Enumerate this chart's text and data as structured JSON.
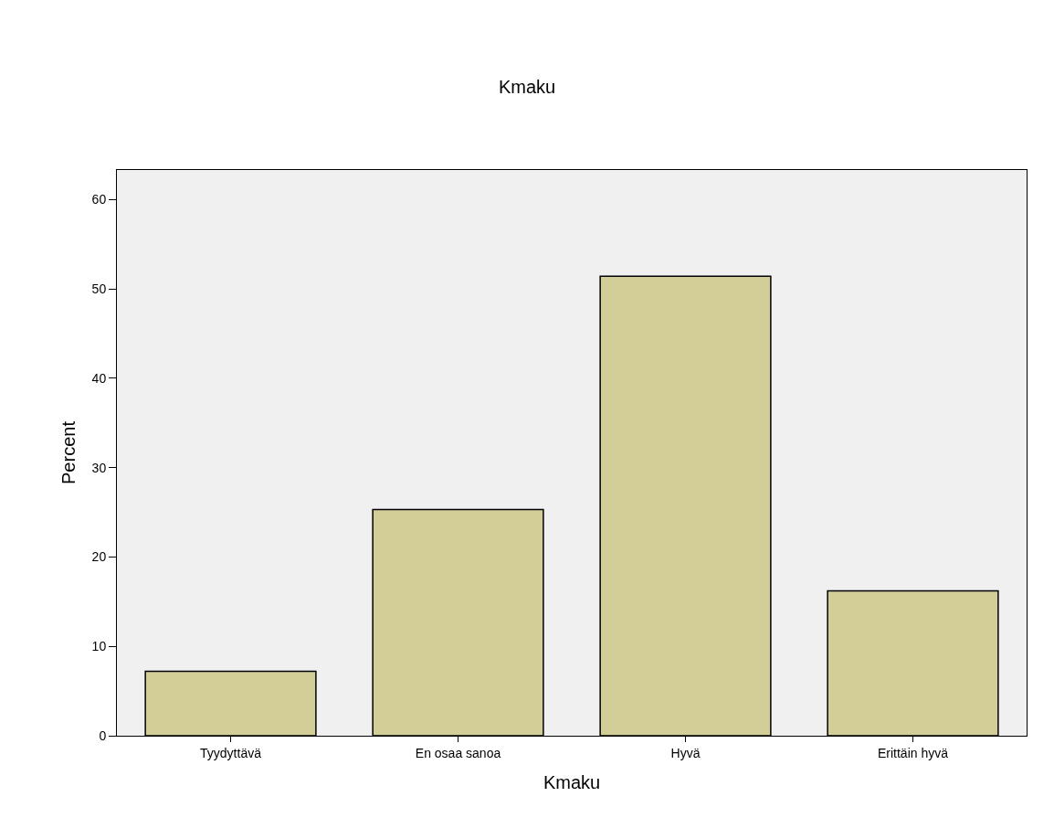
{
  "chart_data": {
    "type": "bar",
    "title": "Kmaku",
    "xlabel": "Kmaku",
    "ylabel": "Percent",
    "categories": [
      "Tyydyttävä",
      "En osaa sanoa",
      "Hyvä",
      "Erittäin hyvä"
    ],
    "values": [
      7.2,
      25.3,
      51.4,
      16.2
    ],
    "color": "#d3ce98",
    "ylim": [
      0,
      63.3
    ],
    "yticks": [
      0,
      10,
      20,
      30,
      40,
      50,
      60
    ],
    "grid": false,
    "legend": false
  }
}
